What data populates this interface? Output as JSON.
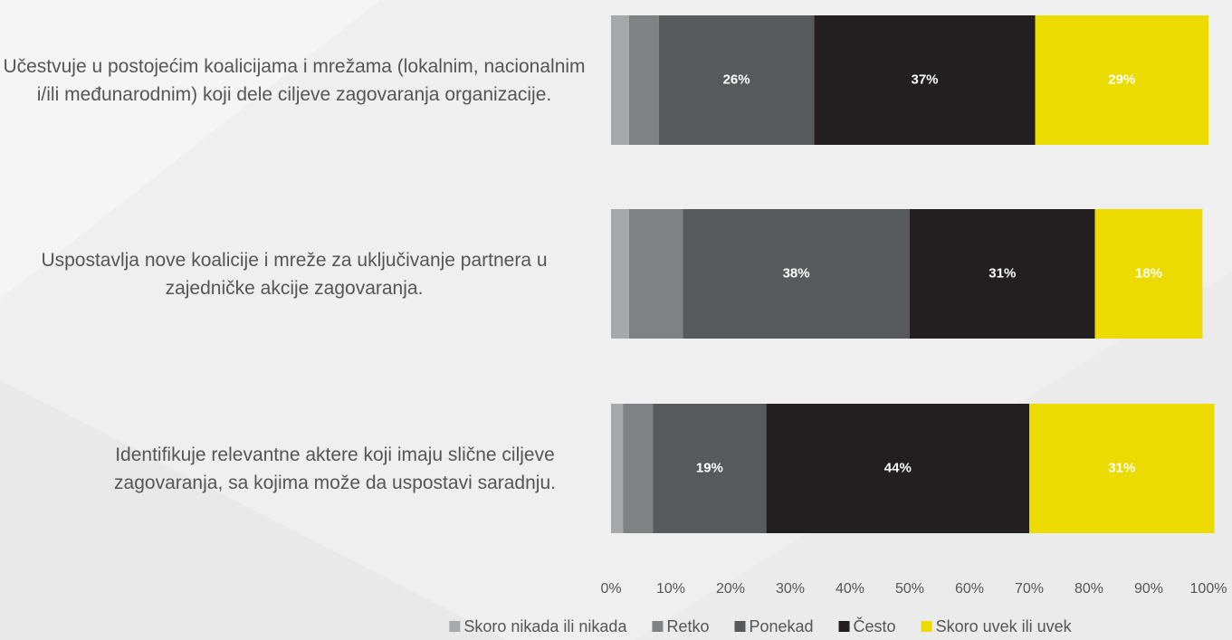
{
  "chart_data": {
    "type": "stacked-barh",
    "categories": [
      "Učestvuje u postojećim koalicijama i mrežama (lokalnim, nacionalnim i/ili međunarodnim) koji dele ciljeve zagovaranja organizacije.",
      "Uspostavlja nove koalicije i mreže za uključivanje partnera u zajedničke akcije zagovaranja.",
      "Identifikuje relevantne aktere koji imaju slične ciljeve zagovaranja, sa kojima može da uspostavi saradnju."
    ],
    "series": [
      {
        "name": "Skoro nikada ili nikada",
        "color": "#a7a8aa",
        "values": [
          3,
          3,
          2
        ]
      },
      {
        "name": "Retko",
        "color": "#808184",
        "values": [
          5,
          9,
          5
        ]
      },
      {
        "name": "Ponekad",
        "color": "#58595b",
        "values": [
          26,
          38,
          19
        ],
        "value_labels": [
          "26%",
          "38%",
          "19%"
        ]
      },
      {
        "name": "Često",
        "color": "#231f20",
        "values": [
          37,
          31,
          44
        ],
        "value_labels": [
          "37%",
          "31%",
          "44%"
        ]
      },
      {
        "name": "Skoro uvek ili uvek",
        "color": "#ecdb00",
        "values": [
          29,
          18,
          31
        ],
        "value_labels": [
          "29%",
          "18%",
          "31%"
        ]
      }
    ],
    "xlim": [
      0,
      100
    ],
    "xticks": [
      {
        "value": 0,
        "label": "0%"
      },
      {
        "value": 10,
        "label": "10%"
      },
      {
        "value": 20,
        "label": "20%"
      },
      {
        "value": 30,
        "label": "30%"
      },
      {
        "value": 40,
        "label": "40%"
      },
      {
        "value": 50,
        "label": "50%"
      },
      {
        "value": 60,
        "label": "60%"
      },
      {
        "value": 70,
        "label": "70%"
      },
      {
        "value": 80,
        "label": "80%"
      },
      {
        "value": 90,
        "label": "90%"
      },
      {
        "value": 100,
        "label": "100%"
      }
    ],
    "legend": "bottom"
  }
}
